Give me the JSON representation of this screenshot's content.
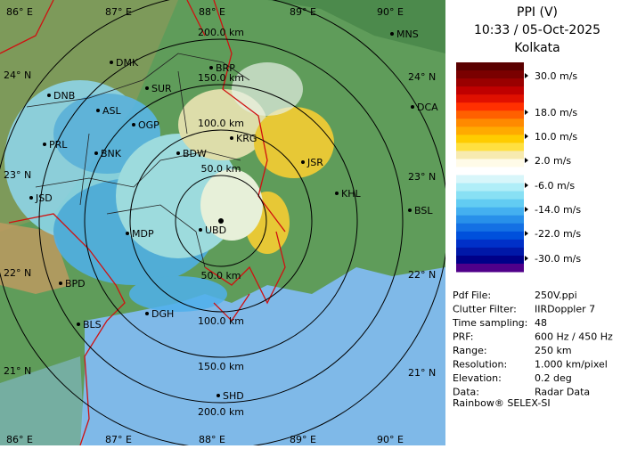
{
  "header": {
    "title": "PPI (V)",
    "time": "10:33 / 05-Oct-2025",
    "station": "Kolkata"
  },
  "legend": {
    "labels": [
      "30.0 m/s",
      "18.0 m/s",
      "10.0 m/s",
      "2.0 m/s",
      "-6.0 m/s",
      "-14.0 m/s",
      "-22.0 m/s",
      "-30.0 m/s"
    ]
  },
  "info": {
    "rows": [
      [
        "Pdf File:",
        "250V.ppi"
      ],
      [
        "Clutter Filter:",
        "IIRDoppler 7"
      ],
      [
        "Time sampling:",
        "48"
      ],
      [
        "PRF:",
        "600 Hz / 450 Hz"
      ],
      [
        "Range:",
        "250 km"
      ],
      [
        "Resolution:",
        "1.000 km/pixel"
      ],
      [
        "Elevation:",
        "0.2 deg"
      ],
      [
        "Data:",
        "Radar Data"
      ]
    ]
  },
  "footer": "Rainbow® SELEX-SI",
  "map": {
    "range_labels_top": [
      "50.0 km",
      "100.0 km",
      "150.0 km",
      "200.0 km"
    ],
    "range_labels_bottom": [
      "50.0 km",
      "100.0 km",
      "150.0 km",
      "200.0 km"
    ],
    "lon_labels_top": [
      "86° E",
      "87° E",
      "88° E",
      "89° E",
      "90° E"
    ],
    "lon_labels_bottom": [
      "86° E",
      "87° E",
      "88° E",
      "89° E",
      "90° E"
    ],
    "lat_labels_left": [
      "24° N",
      "23° N",
      "22° N",
      "21° N"
    ],
    "lat_labels_right": [
      "24° N",
      "23° N",
      "22° N",
      "21° N"
    ],
    "places": [
      "MNS",
      "DMK",
      "BRP",
      "DNB",
      "SUR",
      "ASL",
      "DCA",
      "OGP",
      "KRG",
      "PRL",
      "BNK",
      "BDW",
      "JSR",
      "KHL",
      "JSD",
      "BSL",
      "MDP",
      "UBD",
      "BPD",
      "BLS",
      "DGH",
      "SHD"
    ]
  }
}
